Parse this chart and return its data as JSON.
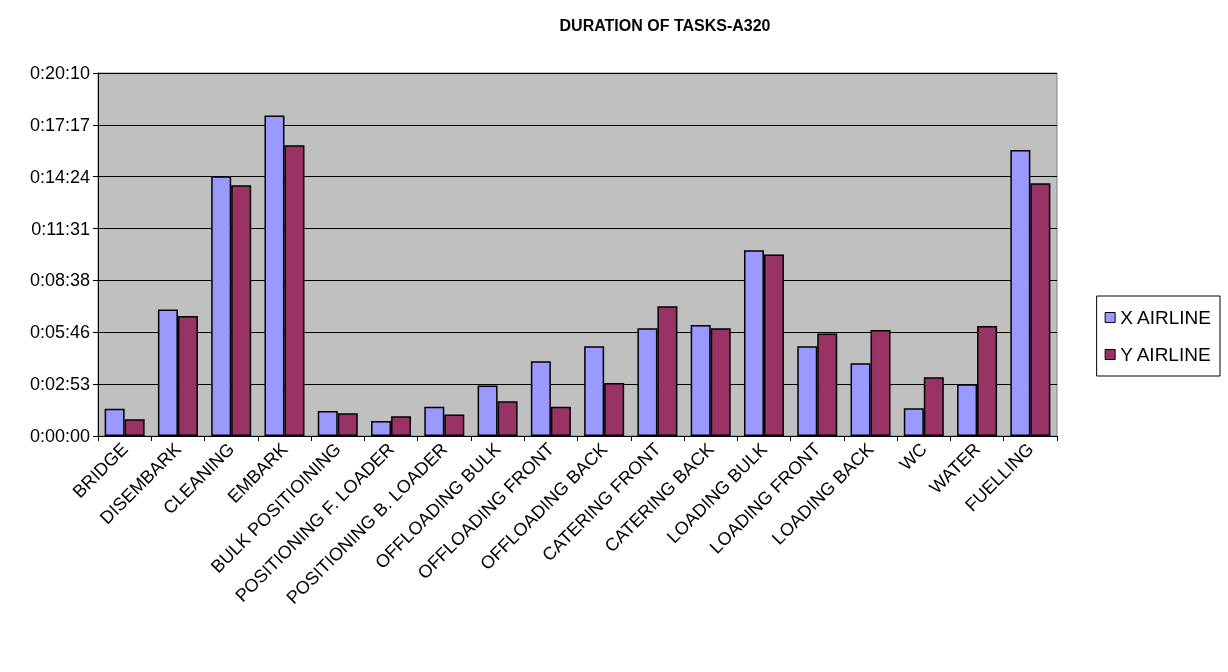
{
  "chart_data": {
    "type": "bar",
    "title": "DURATION OF TASKS-A320",
    "categories": [
      "BRIDGE",
      "DISEMBARK",
      "CLEANING",
      "EMBARK",
      "BULK POSITIOINING",
      "POSITIONING F. LOADER",
      "POSITIONING B. LOADER",
      "OFFLOADING BULK",
      "OFFLOADING FRONT",
      "OFFLOADING BACK",
      "CATERING FRONT",
      "CATERING BACK",
      "LOADING BULK",
      "LOADING FRONT",
      "LOADING BACK",
      "WC",
      "WATER",
      "FUELLING"
    ],
    "series": [
      {
        "name": "X AIRLINE",
        "color": "#9999ff",
        "values": [
          1.52,
          7.02,
          14.43,
          17.8,
          1.39,
          0.83,
          1.63,
          2.8,
          4.15,
          4.98,
          5.98,
          6.17,
          10.32,
          4.98,
          4.04,
          1.54,
          2.87,
          15.89
        ]
      },
      {
        "name": "Y AIRLINE",
        "color": "#993366",
        "values": [
          0.93,
          6.67,
          13.93,
          16.15,
          1.26,
          1.09,
          1.2,
          1.93,
          1.63,
          2.94,
          7.2,
          5.98,
          10.08,
          5.69,
          5.89,
          3.26,
          6.11,
          14.04
        ]
      }
    ],
    "ylim": [
      0,
      20.16
    ],
    "yticks": [
      {
        "value": 0,
        "label": "0:00:00"
      },
      {
        "value": 2.88,
        "label": "0:02:53"
      },
      {
        "value": 5.76,
        "label": "0:05:46"
      },
      {
        "value": 8.64,
        "label": "0:08:38"
      },
      {
        "value": 11.52,
        "label": "0:11:31"
      },
      {
        "value": 14.4,
        "label": "0:14:24"
      },
      {
        "value": 17.28,
        "label": "0:17:17"
      },
      {
        "value": 20.16,
        "label": "0:20:10"
      }
    ],
    "grid": "y",
    "legend": "right"
  }
}
